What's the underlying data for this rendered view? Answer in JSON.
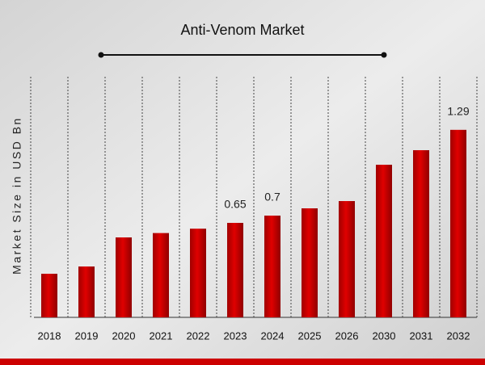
{
  "chart_data": {
    "type": "bar",
    "title": "Anti-Venom Market",
    "ylabel": "Market Size in USD Bn",
    "categories": [
      "2018",
      "2019",
      "2020",
      "2021",
      "2022",
      "2023",
      "2024",
      "2025",
      "2026",
      "2030",
      "2031",
      "2032"
    ],
    "values": [
      0.3,
      0.35,
      0.55,
      0.58,
      0.61,
      0.65,
      0.7,
      0.75,
      0.8,
      1.05,
      1.15,
      1.29
    ],
    "color": "#cc0000",
    "ylim": [
      0,
      1.35
    ]
  }
}
